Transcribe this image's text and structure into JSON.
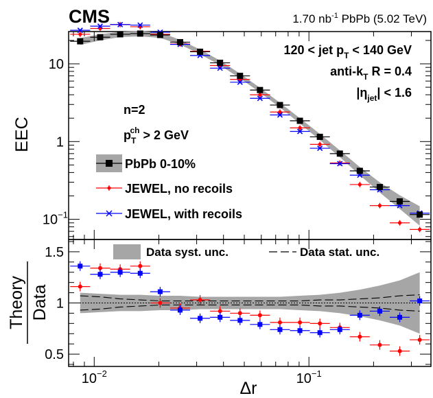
{
  "figure": {
    "experiment": "CMS",
    "lumi": "1.70 nb",
    "lumi_exp": "-1",
    "lumi_rest": " PbPb (5.02 TeV)",
    "jet_cut": {
      "pre": "120 < jet p",
      "sub": "T",
      "post": " < 140 GeV"
    },
    "algo": {
      "pre": "anti-k",
      "sub": "T",
      "post": " R = 0.4"
    },
    "eta": {
      "pre": "|η",
      "sub": "jet",
      "post": "| < 1.6"
    },
    "n_label": "n=2",
    "pt_ch": {
      "pre": "p",
      "sub": "T",
      "sup": "ch",
      "post": " > 2 GeV"
    },
    "ratio_legend": {
      "syst": "Data syst. unc.",
      "stat": "Data stat. unc."
    }
  },
  "colors": {
    "data": "#000000",
    "band": "#a6a6a6",
    "no_recoils": "#ff0000",
    "with_recoils": "#0000ff"
  },
  "chart_data": [
    {
      "type": "scatter",
      "panel": "top",
      "xscale": "log",
      "yscale": "log",
      "xlim": [
        0.0076,
        0.37
      ],
      "ylim": [
        0.055,
        26
      ],
      "xlabel": "",
      "ylabel": "EEC",
      "yticks": [
        {
          "v": 10,
          "main": "10",
          "exp": ""
        },
        {
          "v": 1,
          "main": "1",
          "exp": ""
        },
        {
          "v": 0.1,
          "main": "10",
          "exp": "−1"
        }
      ],
      "x": [
        0.0086,
        0.01066,
        0.01321,
        0.01637,
        0.02028,
        0.02512,
        0.03112,
        0.03855,
        0.04776,
        0.05916,
        0.07328,
        0.09078,
        0.11245,
        0.1393,
        0.17256,
        0.21376,
        0.2648,
        0.32803
      ],
      "legend": [
        "PbPb 0-10%",
        "JEWEL, no recoils",
        "JEWEL, with recoils"
      ],
      "legend_position": "left",
      "series": [
        {
          "name": "PbPb 0-10%",
          "values": [
            19.5,
            22.0,
            24.0,
            24.5,
            23.5,
            19.0,
            14.3,
            10.3,
            7.0,
            4.6,
            2.95,
            1.85,
            1.15,
            0.7,
            0.42,
            0.26,
            0.17,
            0.115
          ],
          "band_rel": [
            0.1,
            0.09,
            0.08,
            0.08,
            0.08,
            0.07,
            0.07,
            0.07,
            0.07,
            0.07,
            0.07,
            0.08,
            0.09,
            0.1,
            0.12,
            0.15,
            0.2,
            0.28
          ]
        },
        {
          "name": "JEWEL, no recoils",
          "values": [
            24.0,
            28.5,
            32.0,
            30.0,
            24.0,
            18.0,
            14.5,
            9.5,
            6.3,
            4.0,
            2.4,
            1.5,
            0.92,
            0.53,
            0.28,
            0.15,
            0.09,
            0.074
          ]
        },
        {
          "name": "JEWEL, with recoils",
          "values": [
            27.0,
            30.5,
            32.0,
            31.5,
            25.5,
            17.8,
            12.8,
            8.8,
            5.8,
            3.6,
            2.2,
            1.35,
            0.82,
            0.52,
            0.37,
            0.24,
            0.15,
            0.12
          ]
        }
      ]
    },
    {
      "type": "scatter",
      "panel": "ratio",
      "xscale": "log",
      "yscale": "linear",
      "xlim": [
        0.0076,
        0.37
      ],
      "ylim": [
        0.38,
        1.62
      ],
      "xlabel": "Δr",
      "ylabel_top": "Theory",
      "ylabel_bottom": "Data",
      "xticks": [
        {
          "v": 0.01,
          "main": "10",
          "exp": "−2"
        },
        {
          "v": 0.1,
          "main": "10",
          "exp": "−1"
        }
      ],
      "yticks": [
        {
          "v": 1.5,
          "label": "1.5"
        },
        {
          "v": 1.0,
          "label": "1"
        },
        {
          "v": 0.5,
          "label": "0.5"
        }
      ],
      "x": [
        0.0086,
        0.01066,
        0.01321,
        0.01637,
        0.02028,
        0.02512,
        0.03112,
        0.03855,
        0.04776,
        0.05916,
        0.07328,
        0.09078,
        0.11245,
        0.1393,
        0.17256,
        0.21376,
        0.2648,
        0.32803
      ],
      "syst_half_width": [
        0.1,
        0.09,
        0.08,
        0.08,
        0.07,
        0.07,
        0.06,
        0.06,
        0.06,
        0.06,
        0.06,
        0.07,
        0.08,
        0.1,
        0.13,
        0.17,
        0.22,
        0.3
      ],
      "stat_half_width": [
        0.07,
        0.06,
        0.04,
        0.03,
        0.02,
        0.02,
        0.02,
        0.02,
        0.02,
        0.02,
        0.02,
        0.02,
        0.03,
        0.03,
        0.04,
        0.05,
        0.07,
        0.08
      ],
      "series": [
        {
          "name": "JEWEL, no recoils",
          "values": [
            1.16,
            1.34,
            1.33,
            1.36,
            1.0,
            0.95,
            1.03,
            0.92,
            0.9,
            0.88,
            0.81,
            0.81,
            0.8,
            0.76,
            0.67,
            0.59,
            0.53,
            0.64
          ]
        },
        {
          "name": "JEWEL, with recoils",
          "values": [
            1.36,
            1.28,
            1.3,
            1.29,
            1.11,
            0.93,
            0.85,
            0.86,
            0.83,
            0.79,
            0.74,
            0.73,
            0.71,
            0.74,
            0.88,
            0.92,
            0.86,
            1.02
          ]
        }
      ]
    }
  ]
}
